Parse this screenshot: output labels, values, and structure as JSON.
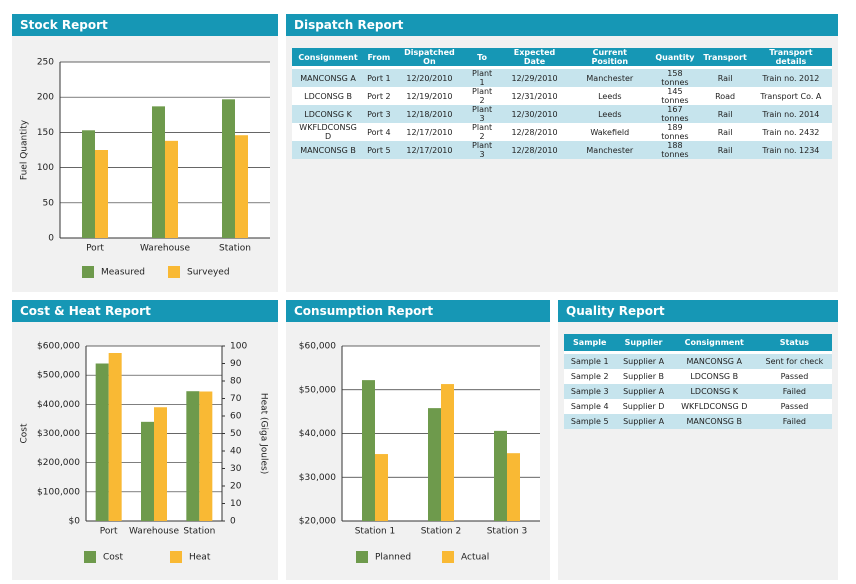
{
  "chart_data": [
    {
      "type": "bar",
      "title": "Stock Report",
      "y_label": "Fuel Quantity",
      "categories": [
        "Port",
        "Warehouse",
        "Station"
      ],
      "series": [
        {
          "name": "Measured",
          "color": "#6e9a4c",
          "values": [
            153,
            187,
            197
          ]
        },
        {
          "name": "Surveyed",
          "color": "#f9b934",
          "values": [
            125,
            138,
            146
          ]
        }
      ],
      "ylim": [
        0,
        250
      ],
      "yticks": [
        0,
        50,
        100,
        150,
        200,
        250
      ],
      "grid": true
    },
    {
      "type": "bar",
      "title": "Cost & Heat Report",
      "y_label": "Cost",
      "y2_label": "Heat (Giga Joules)",
      "categories": [
        "Port",
        "Warehouse",
        "Station"
      ],
      "series": [
        {
          "name": "Cost",
          "color": "#6e9a4c",
          "values": [
            540000,
            340000,
            445000
          ]
        },
        {
          "name": "Heat",
          "color": "#f9b934",
          "values": [
            96,
            65,
            74
          ],
          "axis": "y2"
        }
      ],
      "ylim": [
        0,
        600000
      ],
      "yticks": [
        {
          "value": 0,
          "label": "$0"
        },
        {
          "value": 100000,
          "label": "$100,000"
        },
        {
          "value": 200000,
          "label": "$200,000"
        },
        {
          "value": 300000,
          "label": "$300,000"
        },
        {
          "value": 400000,
          "label": "$400,000"
        },
        {
          "value": 500000,
          "label": "$500,000"
        },
        {
          "value": 600000,
          "label": "$600,000"
        }
      ],
      "y2lim": [
        0,
        100
      ],
      "y2ticks": [
        0,
        10,
        20,
        30,
        40,
        50,
        60,
        70,
        80,
        90,
        100
      ],
      "grid": true
    },
    {
      "type": "bar",
      "title": "Consumption Report",
      "categories": [
        "Station 1",
        "Station 2",
        "Station 3"
      ],
      "series": [
        {
          "name": "Planned",
          "color": "#6e9a4c",
          "values": [
            52200,
            45800,
            40600
          ]
        },
        {
          "name": "Actual",
          "color": "#f9b934",
          "values": [
            35300,
            51300,
            35500
          ]
        }
      ],
      "ylim": [
        20000,
        60000
      ],
      "yticks": [
        {
          "value": 20000,
          "label": "$20,000"
        },
        {
          "value": 30000,
          "label": "$30,000"
        },
        {
          "value": 40000,
          "label": "$40,000"
        },
        {
          "value": 50000,
          "label": "$50,000"
        },
        {
          "value": 60000,
          "label": "$60,000"
        }
      ],
      "grid": true
    }
  ],
  "dispatch_report": {
    "title": "Dispatch Report",
    "columns": [
      "Consignment",
      "From",
      "Dispatched On",
      "To",
      "Expected Date",
      "Current Position",
      "Quantity",
      "Transport",
      "Transport details"
    ],
    "rows": [
      [
        "MANCONSG A",
        "Port 1",
        "12/20/2010",
        "Plant 1",
        "12/29/2010",
        "Manchester",
        "158 tonnes",
        "Rail",
        "Train no. 2012"
      ],
      [
        "LDCONSG B",
        "Port 2",
        "12/19/2010",
        "Plant 2",
        "12/31/2010",
        "Leeds",
        "145 tonnes",
        "Road",
        "Transport Co. A"
      ],
      [
        "LDCONSG K",
        "Port 3",
        "12/18/2010",
        "Plant 3",
        "12/30/2010",
        "Leeds",
        "167 tonnes",
        "Rail",
        "Train no. 2014"
      ],
      [
        "WKFLDCONSG D",
        "Port 4",
        "12/17/2010",
        "Plant 2",
        "12/28/2010",
        "Wakefield",
        "189 tonnes",
        "Rail",
        "Train no. 2432"
      ],
      [
        "MANCONSG B",
        "Port 5",
        "12/17/2010",
        "Plant 3",
        "12/28/2010",
        "Manchester",
        "188 tonnes",
        "Rail",
        "Train no. 1234"
      ]
    ]
  },
  "quality_report": {
    "title": "Quality Report",
    "columns": [
      "Sample",
      "Supplier",
      "Consignment",
      "Status"
    ],
    "rows": [
      [
        "Sample 1",
        "Supplier A",
        "MANCONSG A",
        "Sent for check"
      ],
      [
        "Sample 2",
        "Supplier B",
        "LDCONSG B",
        "Passed"
      ],
      [
        "Sample 3",
        "Supplier A",
        "LDCONSG K",
        "Failed"
      ],
      [
        "Sample 4",
        "Supplier D",
        "WKFLDCONSG D",
        "Passed"
      ],
      [
        "Sample 5",
        "Supplier A",
        "MANCONSG B",
        "Failed"
      ]
    ]
  }
}
